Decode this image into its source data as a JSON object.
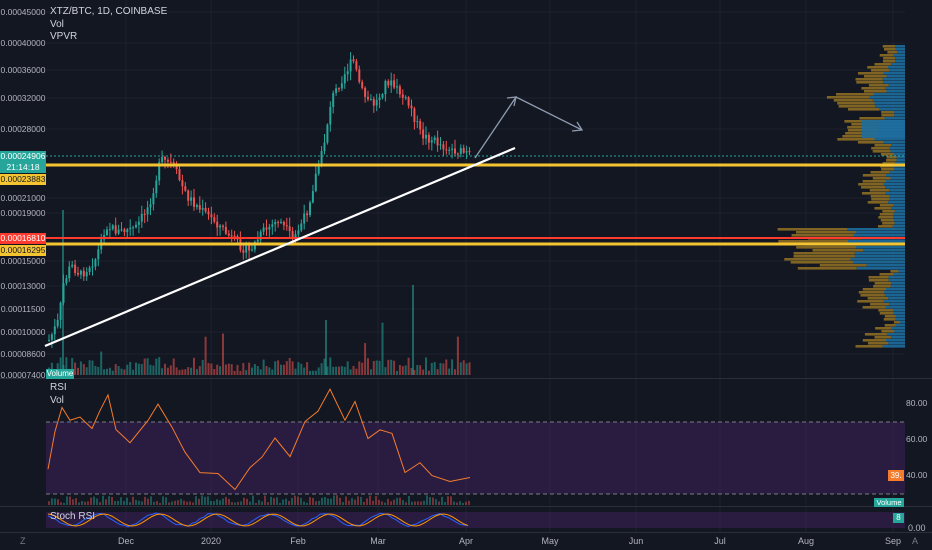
{
  "header": {
    "symbol_line": "XTZ/BTC, 1D, COINBASE",
    "indicator_vol": "Vol",
    "indicator_vpvr": "VPVR"
  },
  "price_axis": {
    "labels": [
      "0.00045000",
      "0.00040000",
      "0.00036000",
      "0.00032000",
      "0.00028000",
      "0.00024906",
      "0.00023883",
      "0.00021000",
      "0.00019000",
      "0.00016810",
      "0.00016295",
      "0.00015000",
      "0.00013000",
      "0.00011500",
      "0.00010000",
      "0.00008600",
      "0.00007400"
    ],
    "last_price_tag": "0.00024906",
    "countdown_tag": "21:14:18",
    "level_high_tag": "0.00023883",
    "level_red_tag": "0.00016810",
    "level_low_tag": "0.00016295",
    "volume_tag": "Volume"
  },
  "rsi_pane": {
    "title": "RSI",
    "vol_label": "Vol",
    "axis_labels": [
      "80.00",
      "60.00",
      "40.00"
    ],
    "value_tag": "39.",
    "volume_tag": "Volume"
  },
  "stoch_pane": {
    "title": "Stoch RSI",
    "axis_label": "0.00",
    "value_tag": "8"
  },
  "time_axis": {
    "labels": [
      "Dec",
      "2020",
      "Feb",
      "Mar",
      "Apr",
      "May",
      "Jun",
      "Jul",
      "Aug",
      "Sep"
    ]
  },
  "corner": {
    "zoom_icon_glyph": "Z",
    "auto_glyph": "A"
  },
  "colors": {
    "background": "#131722",
    "up": "#26a69a",
    "down": "#ef5350",
    "level_orange": "#f5c531",
    "level_red": "#ff3b30",
    "trendline": "#ffffff",
    "projection_arrow": "#8e9bb0",
    "rsi_line": "#f57c2c",
    "rsi_fill": "#3b1f56",
    "stoch_fill": "#3b1f56",
    "vpvr_up": "#1e6ea0",
    "vpvr_down": "#8c6d24"
  },
  "chart_data": {
    "type": "candlestick",
    "title": "XTZ/BTC, 1D, COINBASE",
    "x_range": [
      "Nov 2019",
      "Sep 2020"
    ],
    "y_range": [
      7.4e-05,
      0.00045
    ],
    "y_scale": "log",
    "last_price": 0.00024906,
    "horizontal_levels": [
      0.00023883,
      0.0001681,
      0.00016295
    ],
    "trendline": {
      "from": [
        "Nov 2019",
        8.7e-05
      ],
      "to": [
        "Apr 2020",
        0.00025
      ]
    },
    "key_points": [
      {
        "x": "Nov 2019",
        "close": 8.7e-05
      },
      {
        "x": "Nov 2019",
        "close": 0.00014
      },
      {
        "x": "Dec 2019",
        "close": 0.00025
      },
      {
        "x": "Jan 2020",
        "close": 0.000155
      },
      {
        "x": "Feb 2020",
        "close": 0.00024
      },
      {
        "x": "Feb 2020",
        "close": 0.00038
      },
      {
        "x": "Mar 2020",
        "close": 0.00036
      },
      {
        "x": "Mar 2020",
        "close": 0.00027
      },
      {
        "x": "Apr 2020",
        "close": 0.000249
      }
    ],
    "rsi_axis": [
      40,
      60,
      80
    ]
  }
}
